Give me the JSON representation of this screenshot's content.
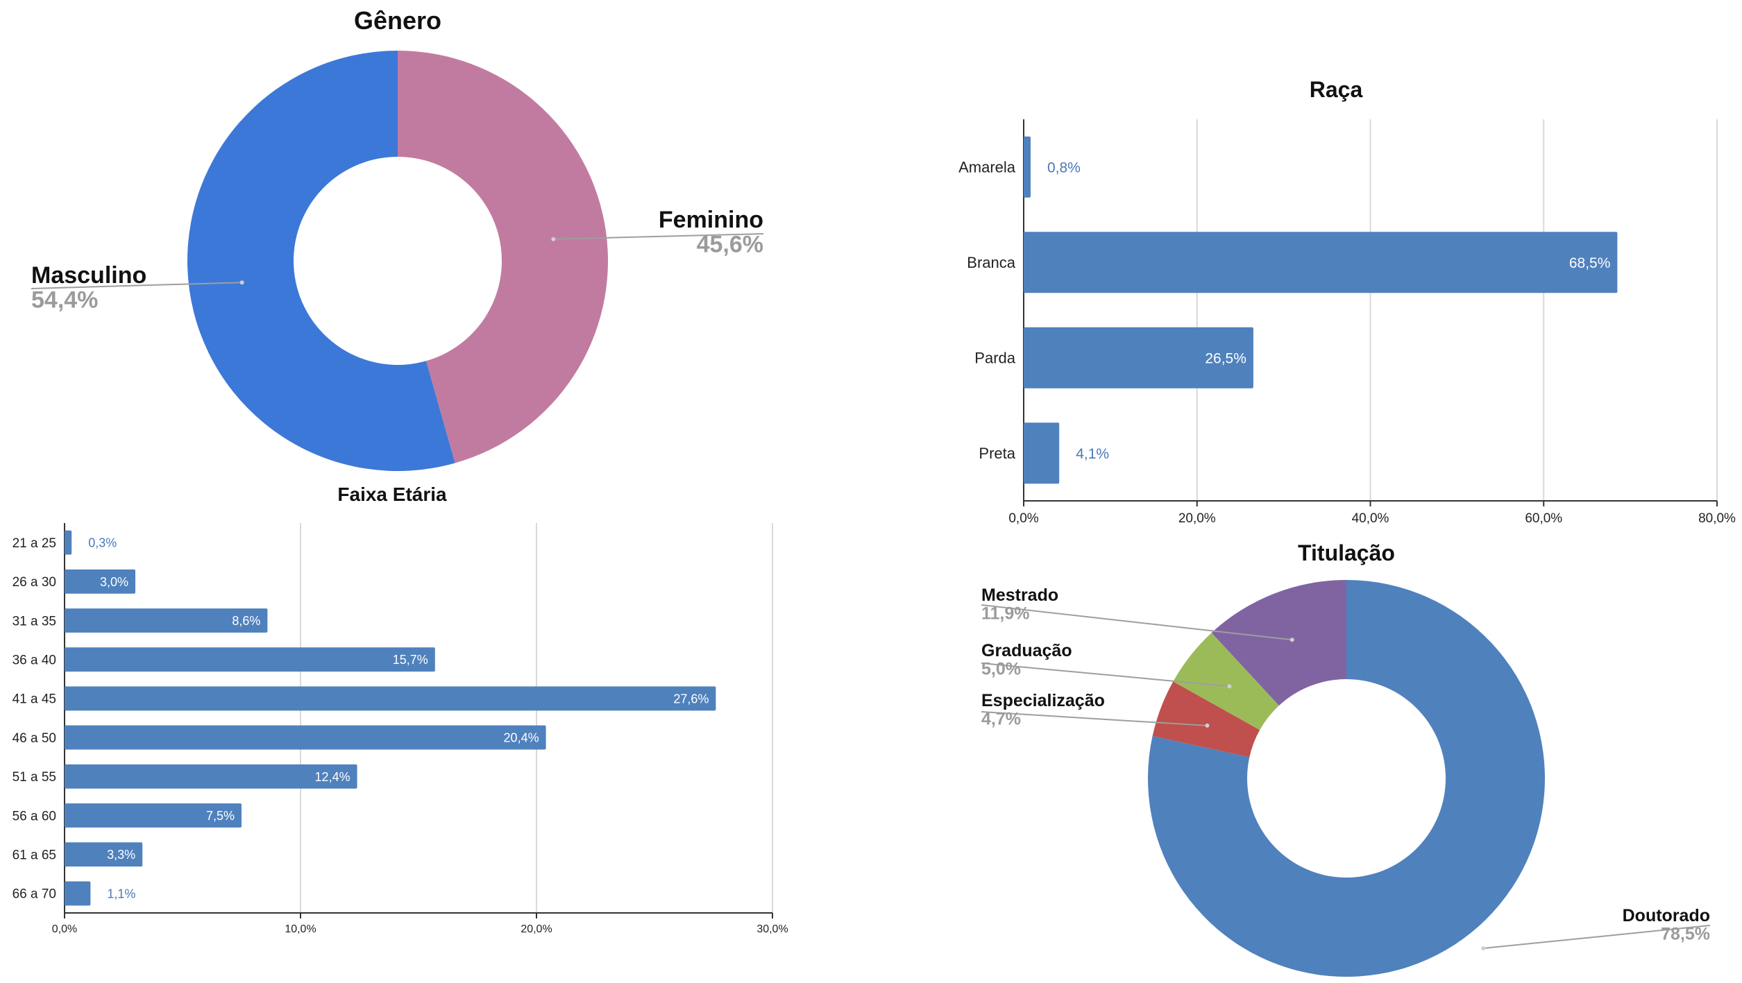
{
  "chart_data": [
    {
      "id": "genero",
      "type": "pie",
      "donut": true,
      "title": "Gênero",
      "slices": [
        {
          "label": "Feminino",
          "value": 45.6,
          "display": "45,6%",
          "color": "#c27ba0"
        },
        {
          "label": "Masculino",
          "value": 54.4,
          "display": "54,4%",
          "color": "#3c78d8"
        }
      ]
    },
    {
      "id": "raca",
      "type": "bar",
      "orientation": "horizontal",
      "title": "Raça",
      "categories": [
        "Amarela",
        "Branca",
        "Parda",
        "Preta"
      ],
      "values": [
        0.8,
        68.5,
        26.5,
        4.1
      ],
      "value_labels": [
        "0,8%",
        "68,5%",
        "26,5%",
        "4,1%"
      ],
      "xlim": [
        0,
        80
      ],
      "xticks": [
        "0,0%",
        "20,0%",
        "40,0%",
        "60,0%",
        "80,0%"
      ],
      "grid": true,
      "color": "#4f81bd"
    },
    {
      "id": "faixa-etaria",
      "type": "bar",
      "orientation": "horizontal",
      "title": "Faixa Etária",
      "categories": [
        "21 a 25",
        "26 a 30",
        "31 a 35",
        "36 a 40",
        "41 a 45",
        "46 a 50",
        "51 a 55",
        "56 a 60",
        "61 a 65",
        "66 a 70"
      ],
      "values": [
        0.3,
        3.0,
        8.6,
        15.7,
        27.6,
        20.4,
        12.4,
        7.5,
        3.3,
        1.1
      ],
      "value_labels": [
        "0,3%",
        "3,0%",
        "8,6%",
        "15,7%",
        "27,6%",
        "20,4%",
        "12,4%",
        "7,5%",
        "3,3%",
        "1,1%"
      ],
      "xlim": [
        0,
        30
      ],
      "xticks": [
        "0,0%",
        "10,0%",
        "20,0%",
        "30,0%"
      ],
      "grid": true,
      "color": "#4f81bd"
    },
    {
      "id": "titulacao",
      "type": "pie",
      "donut": true,
      "title": "Titulação",
      "slices": [
        {
          "label": "Doutorado",
          "value": 78.5,
          "display": "78,5%",
          "color": "#4f81bd"
        },
        {
          "label": "Especialização",
          "value": 4.7,
          "display": "4,7%",
          "color": "#c0504d"
        },
        {
          "label": "Graduação",
          "value": 5.0,
          "display": "5,0%",
          "color": "#9bbb59"
        },
        {
          "label": "Mestrado",
          "value": 11.9,
          "display": "11,9%",
          "color": "#8064a2"
        }
      ]
    }
  ]
}
